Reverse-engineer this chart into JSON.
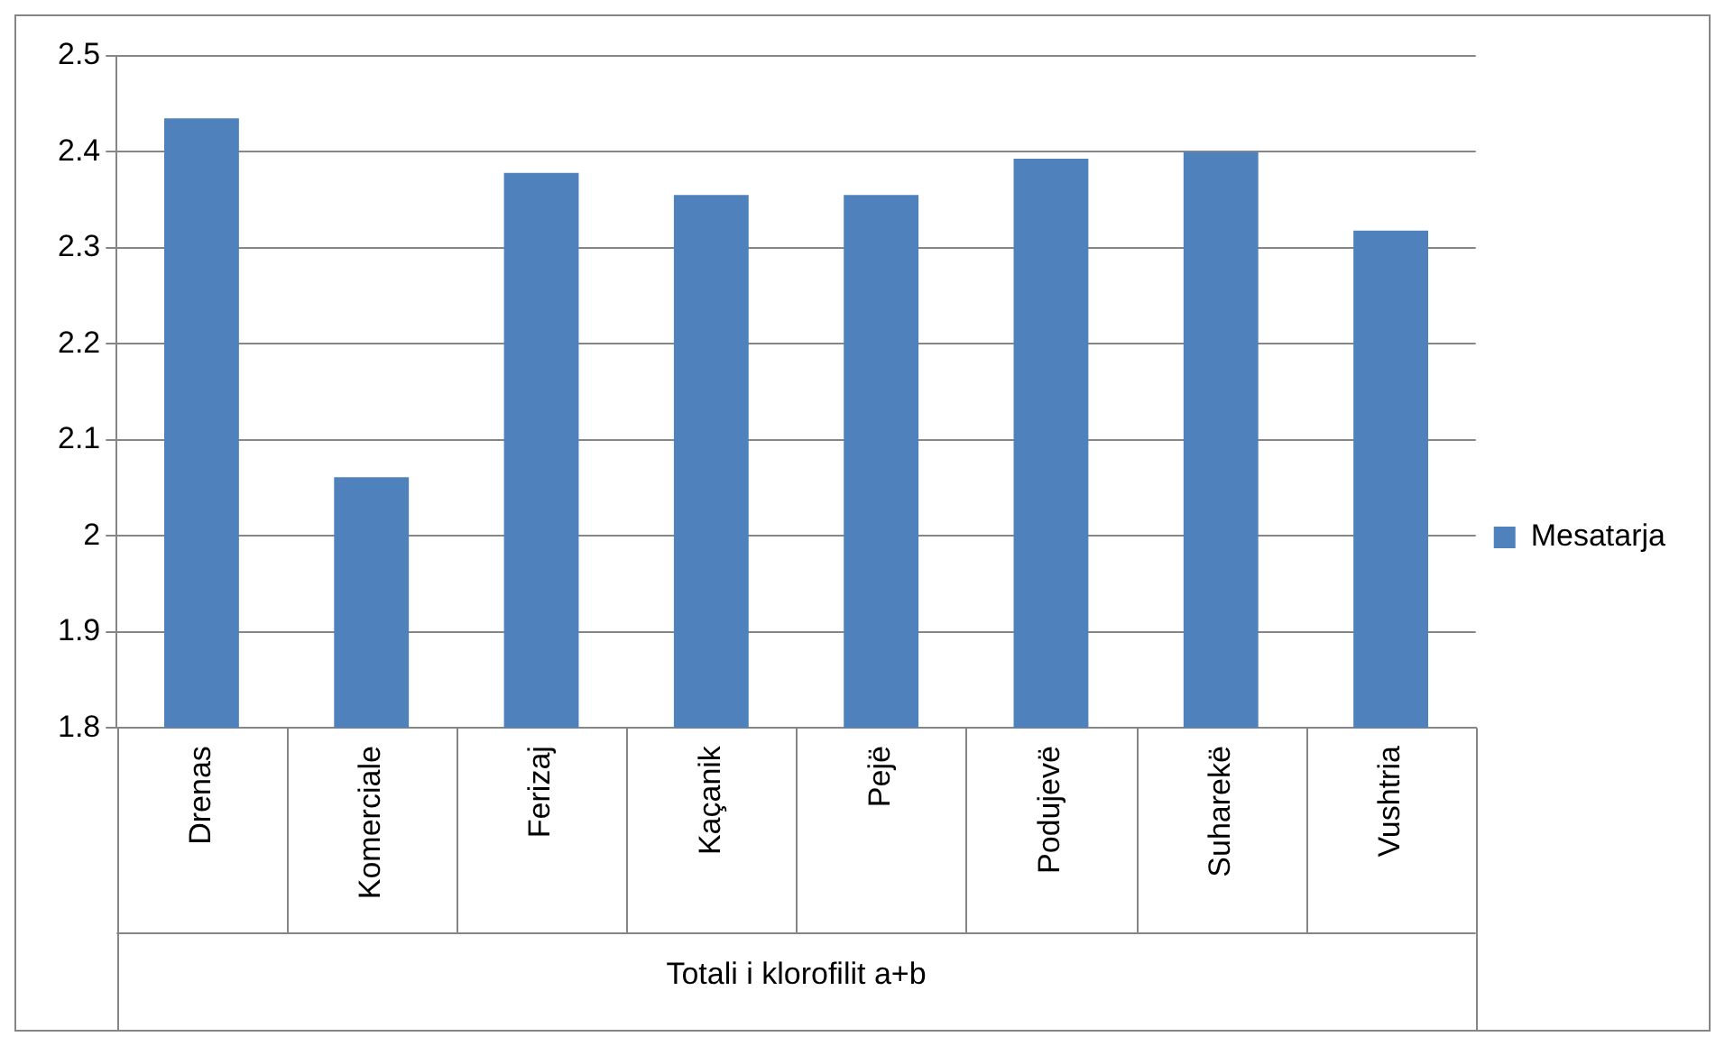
{
  "chart_data": {
    "type": "bar",
    "xlabel": "Totali i klorofilit a+b",
    "categories": [
      "Drenas",
      "Komerciale",
      "Ferizaj",
      "Kaçanik",
      "Pejë",
      "Podujevë",
      "Suharekë",
      "Vushtria"
    ],
    "series": [
      {
        "name": "Mesatarja",
        "color": "#4f81bd",
        "values": [
          2.435,
          2.061,
          2.378,
          2.355,
          2.355,
          2.393,
          2.4,
          2.318
        ]
      }
    ],
    "ylim": [
      1.8,
      2.5
    ],
    "yticks": [
      1.8,
      1.9,
      2,
      2.1,
      2.2,
      2.3,
      2.4,
      2.5
    ],
    "grid": "y",
    "legend": "right"
  }
}
